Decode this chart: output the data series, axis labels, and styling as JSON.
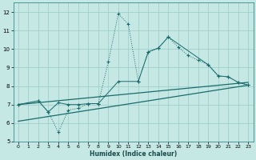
{
  "background_color": "#c5e8e5",
  "grid_color": "#9fcfcc",
  "line_color": "#1a6b6b",
  "xlabel": "Humidex (Indice chaleur)",
  "xlim": [
    -0.5,
    23.5
  ],
  "ylim": [
    5,
    12.5
  ],
  "xticks": [
    0,
    1,
    2,
    3,
    4,
    5,
    6,
    7,
    8,
    9,
    10,
    11,
    12,
    13,
    14,
    15,
    16,
    17,
    18,
    19,
    20,
    21,
    22,
    23
  ],
  "yticks": [
    5,
    6,
    7,
    8,
    9,
    10,
    11,
    12
  ],
  "dotted_line": {
    "x": [
      0,
      2,
      3,
      4,
      5,
      6,
      7,
      8,
      9,
      10,
      11,
      12,
      13,
      14,
      15,
      16,
      17,
      18,
      19,
      20,
      21,
      22,
      23
    ],
    "y": [
      7.0,
      7.2,
      6.6,
      5.5,
      6.7,
      6.8,
      7.05,
      7.05,
      9.3,
      11.9,
      11.35,
      8.25,
      9.85,
      10.05,
      10.65,
      10.1,
      9.65,
      9.4,
      9.15,
      8.55,
      8.5,
      8.2,
      8.05
    ]
  },
  "solid_line": {
    "x": [
      0,
      2,
      3,
      4,
      5,
      6,
      7,
      8,
      10,
      12,
      13,
      14,
      15,
      19,
      20,
      21,
      22,
      23
    ],
    "y": [
      7.0,
      7.2,
      6.6,
      7.1,
      7.0,
      7.0,
      7.05,
      7.05,
      8.25,
      8.25,
      9.85,
      10.05,
      10.65,
      9.15,
      8.55,
      8.5,
      8.2,
      8.05
    ]
  },
  "regression_upper": {
    "x": [
      0,
      23
    ],
    "y": [
      7.0,
      8.2
    ]
  },
  "regression_lower": {
    "x": [
      0,
      23
    ],
    "y": [
      6.1,
      8.05
    ]
  }
}
